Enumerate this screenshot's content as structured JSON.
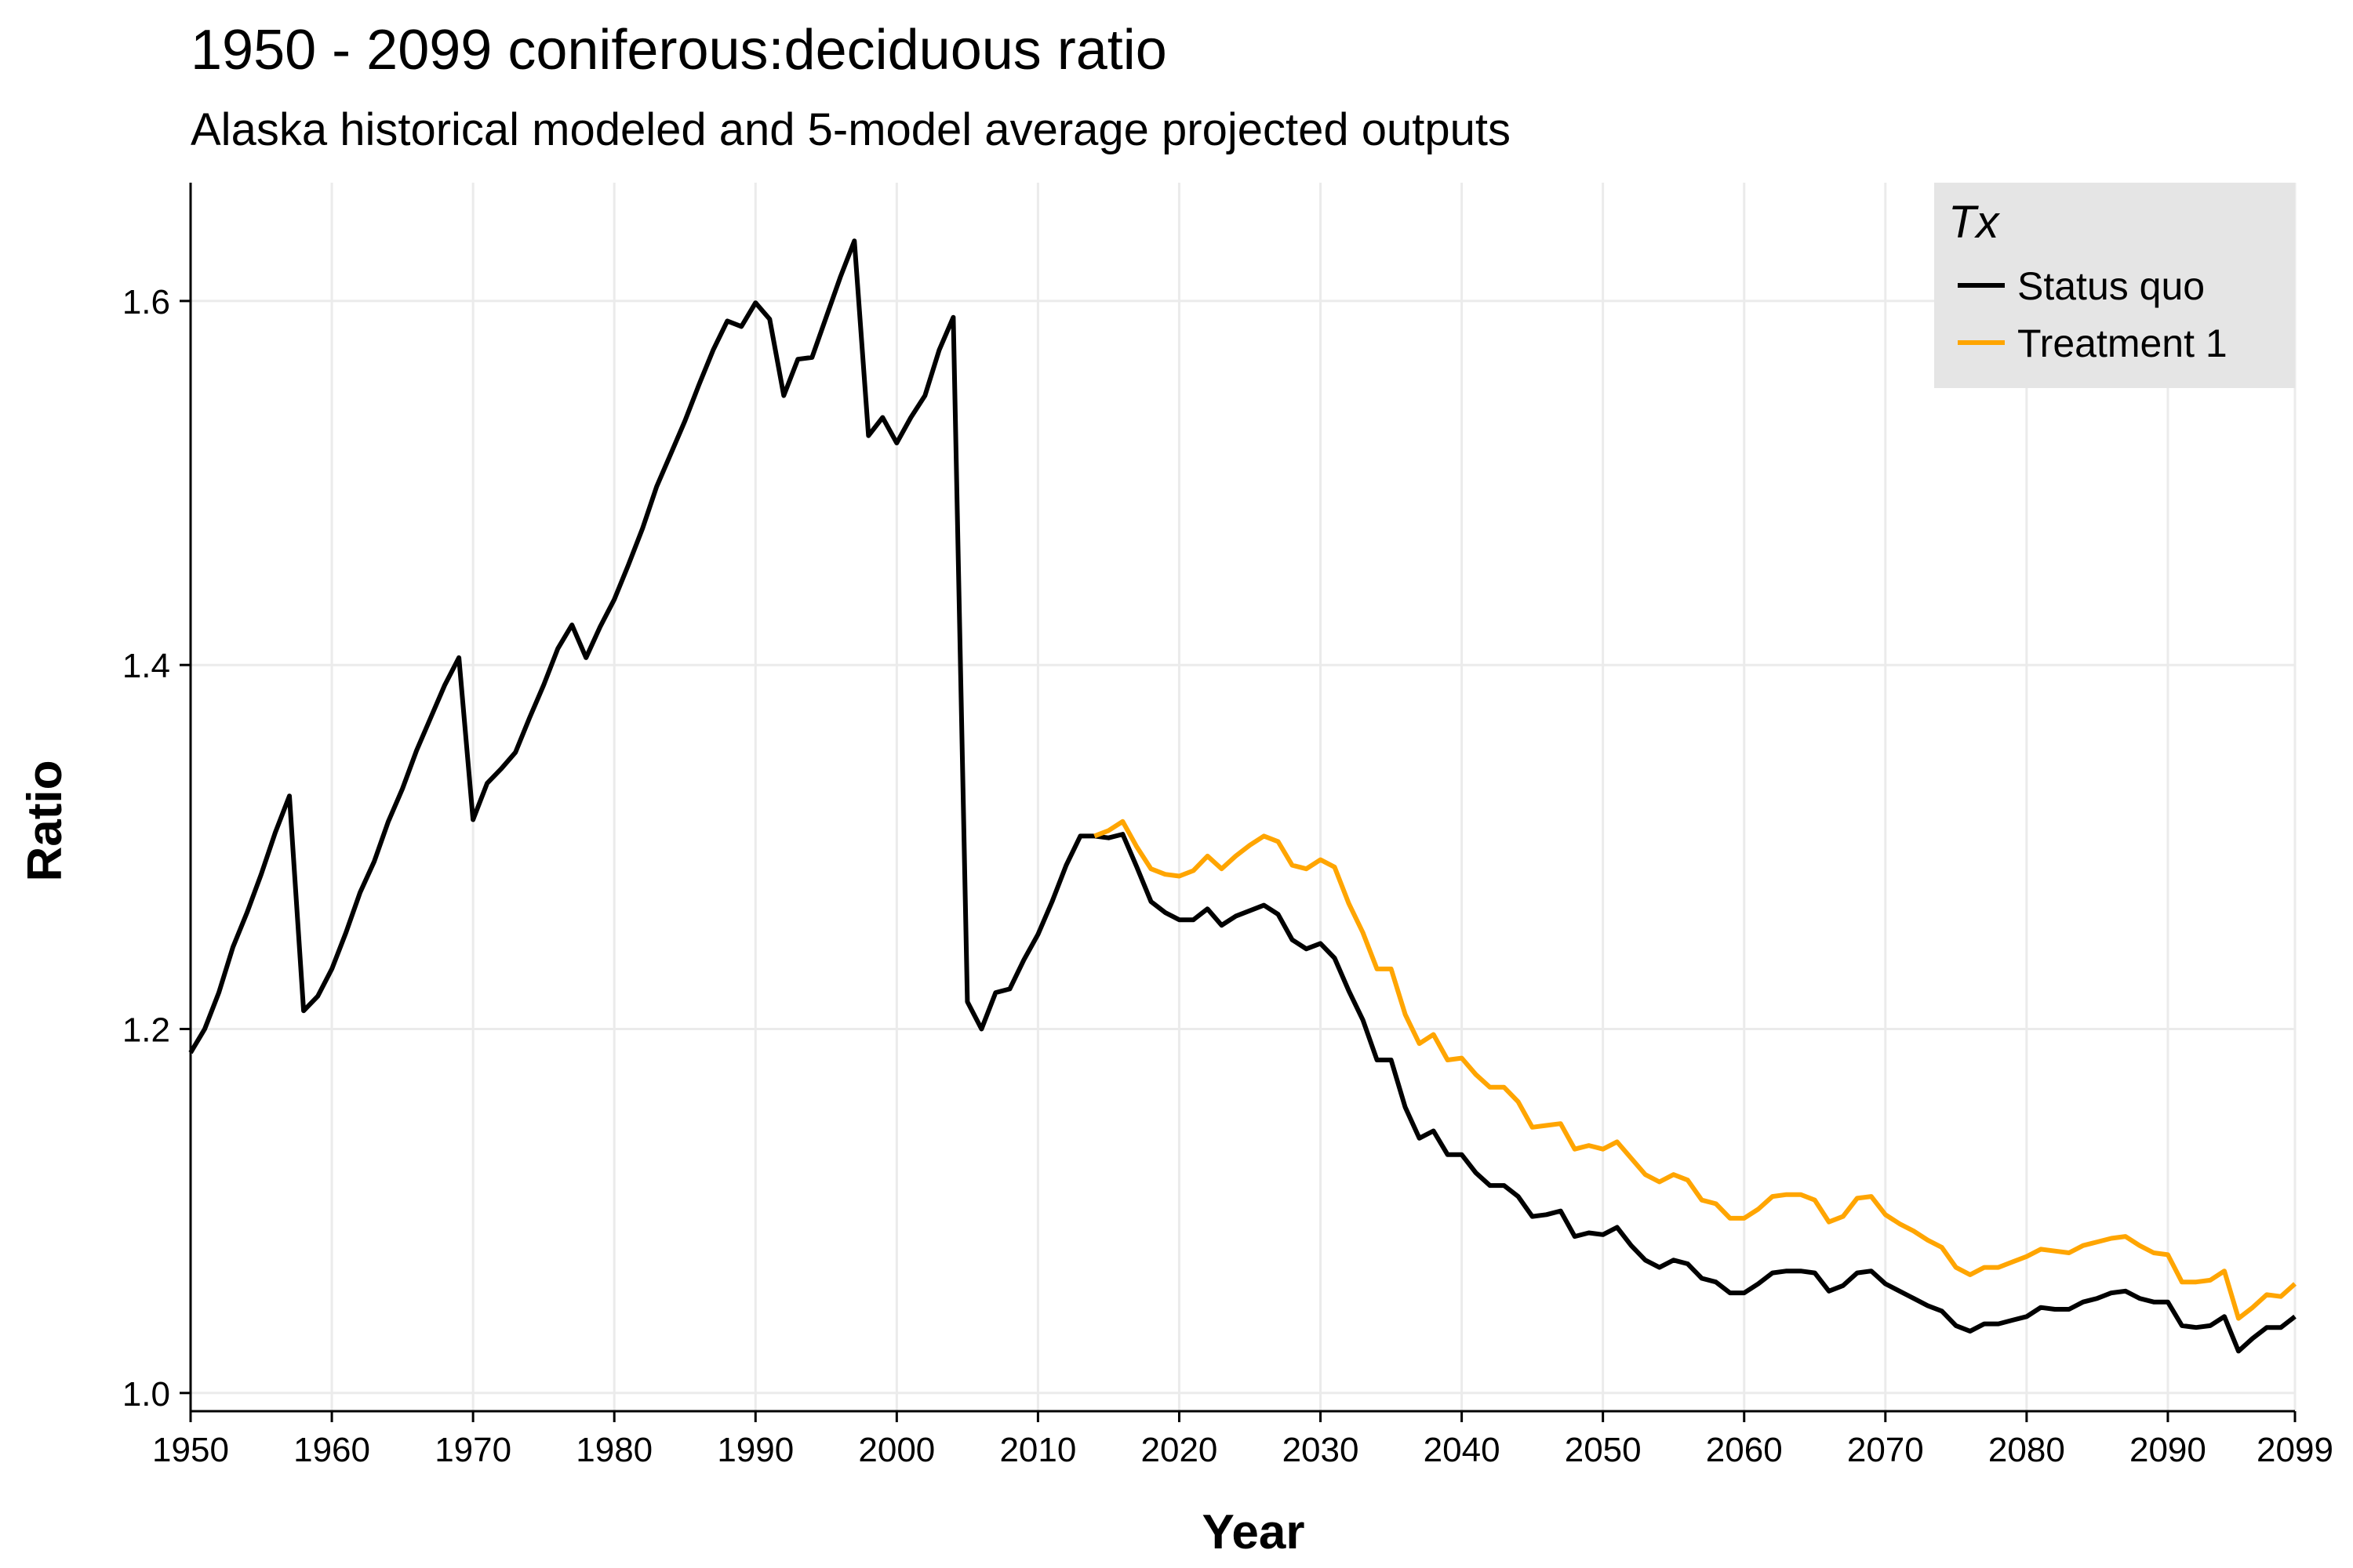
{
  "chart_data": {
    "type": "line",
    "title": "1950 - 2099 coniferous:deciduous ratio",
    "subtitle": "Alaska historical modeled and 5-model average projected outputs",
    "xlabel": "Year",
    "ylabel": "Ratio",
    "xlim": [
      1950,
      2099
    ],
    "ylim": [
      0.99,
      1.665
    ],
    "x_ticks": [
      1950,
      1960,
      1970,
      1980,
      1990,
      2000,
      2010,
      2020,
      2030,
      2040,
      2050,
      2060,
      2070,
      2080,
      2090,
      2099
    ],
    "y_ticks": [
      1.0,
      1.2,
      1.4,
      1.6
    ],
    "y_tick_labels": [
      "1.0",
      "1.2",
      "1.4",
      "1.6"
    ],
    "grid": true,
    "legend": {
      "title": "Tx",
      "position": "top-right"
    },
    "series": [
      {
        "name": "Status quo",
        "color": "#000000",
        "x_start": 1950,
        "values": [
          1.187,
          1.2,
          1.22,
          1.245,
          1.264,
          1.285,
          1.308,
          1.328,
          1.21,
          1.218,
          1.233,
          1.253,
          1.275,
          1.292,
          1.314,
          1.332,
          1.353,
          1.371,
          1.389,
          1.404,
          1.315,
          1.335,
          1.343,
          1.352,
          1.371,
          1.389,
          1.409,
          1.422,
          1.404,
          1.421,
          1.436,
          1.455,
          1.475,
          1.498,
          1.516,
          1.534,
          1.554,
          1.573,
          1.589,
          1.586,
          1.599,
          1.59,
          1.548,
          1.568,
          1.569,
          1.591,
          1.613,
          1.633,
          1.526,
          1.536,
          1.522,
          1.536,
          1.548,
          1.573,
          1.591,
          1.215,
          1.2,
          1.22,
          1.222,
          1.238,
          1.252,
          1.27,
          1.29,
          1.306,
          1.306,
          1.305,
          1.307,
          1.289,
          1.27,
          1.264,
          1.26,
          1.26,
          1.266,
          1.257,
          1.262,
          1.265,
          1.268,
          1.263,
          1.249,
          1.244,
          1.247,
          1.239,
          1.221,
          1.205,
          1.183,
          1.183,
          1.157,
          1.14,
          1.144,
          1.131,
          1.131,
          1.121,
          1.114,
          1.114,
          1.108,
          1.097,
          1.098,
          1.1,
          1.086,
          1.088,
          1.087,
          1.091,
          1.081,
          1.073,
          1.069,
          1.073,
          1.071,
          1.063,
          1.061,
          1.055,
          1.055,
          1.06,
          1.066,
          1.067,
          1.067,
          1.066,
          1.056,
          1.059,
          1.066,
          1.067,
          1.06,
          1.056,
          1.052,
          1.048,
          1.045,
          1.037,
          1.034,
          1.038,
          1.038,
          1.04,
          1.042,
          1.047,
          1.046,
          1.046,
          1.05,
          1.052,
          1.055,
          1.056,
          1.052,
          1.05,
          1.05,
          1.037,
          1.036,
          1.037,
          1.042,
          1.023,
          1.03,
          1.036,
          1.036,
          1.042
        ]
      },
      {
        "name": "Treatment 1",
        "color": "#FFA500",
        "x_start": 2014,
        "values": [
          1.306,
          1.309,
          1.314,
          1.3,
          1.288,
          1.285,
          1.284,
          1.287,
          1.295,
          1.288,
          1.295,
          1.301,
          1.306,
          1.303,
          1.29,
          1.288,
          1.293,
          1.289,
          1.269,
          1.253,
          1.233,
          1.233,
          1.208,
          1.192,
          1.197,
          1.183,
          1.184,
          1.175,
          1.168,
          1.168,
          1.16,
          1.146,
          1.147,
          1.148,
          1.134,
          1.136,
          1.134,
          1.138,
          1.129,
          1.12,
          1.116,
          1.12,
          1.117,
          1.106,
          1.104,
          1.096,
          1.096,
          1.101,
          1.108,
          1.109,
          1.109,
          1.106,
          1.094,
          1.097,
          1.107,
          1.108,
          1.098,
          1.093,
          1.089,
          1.084,
          1.08,
          1.069,
          1.065,
          1.069,
          1.069,
          1.072,
          1.075,
          1.079,
          1.078,
          1.077,
          1.081,
          1.083,
          1.085,
          1.086,
          1.081,
          1.077,
          1.076,
          1.061,
          1.061,
          1.062,
          1.067,
          1.041,
          1.047,
          1.054,
          1.053,
          1.06
        ]
      }
    ]
  }
}
